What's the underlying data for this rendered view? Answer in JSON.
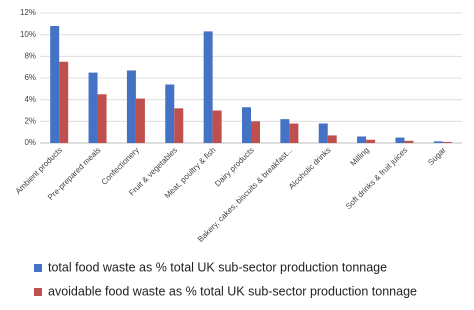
{
  "chart_data": {
    "type": "bar",
    "categories": [
      "Ambient products",
      "Pre-prepared meals",
      "Confectionery",
      "Fruit & vegetables",
      "Meat, poultry & fish",
      "Dairy products",
      "Bakery, cakes, biscuits & breakfast...",
      "Alcoholic drinks",
      "Milling",
      "Soft drinks & fruit juices",
      "Sugar"
    ],
    "series": [
      {
        "name": "total food waste as % total UK sub-sector production tonnage",
        "color": "#4472c4",
        "values": [
          10.8,
          6.5,
          6.7,
          5.4,
          10.3,
          3.3,
          2.2,
          1.8,
          0.6,
          0.5,
          0.15
        ]
      },
      {
        "name": "avoidable food waste as % total UK sub-sector production tonnage",
        "color": "#c0504d",
        "values": [
          7.5,
          4.5,
          4.1,
          3.2,
          3.0,
          2.0,
          1.8,
          0.7,
          0.3,
          0.2,
          0.1
        ]
      }
    ],
    "ylim": [
      0,
      12
    ],
    "yticks": [
      {
        "value": 0,
        "label": "0%"
      },
      {
        "value": 2,
        "label": "2%"
      },
      {
        "value": 4,
        "label": "4%"
      },
      {
        "value": 6,
        "label": "6%"
      },
      {
        "value": 8,
        "label": "8%"
      },
      {
        "value": 10,
        "label": "10%"
      },
      {
        "value": 12,
        "label": "12%"
      }
    ],
    "grid": true
  }
}
